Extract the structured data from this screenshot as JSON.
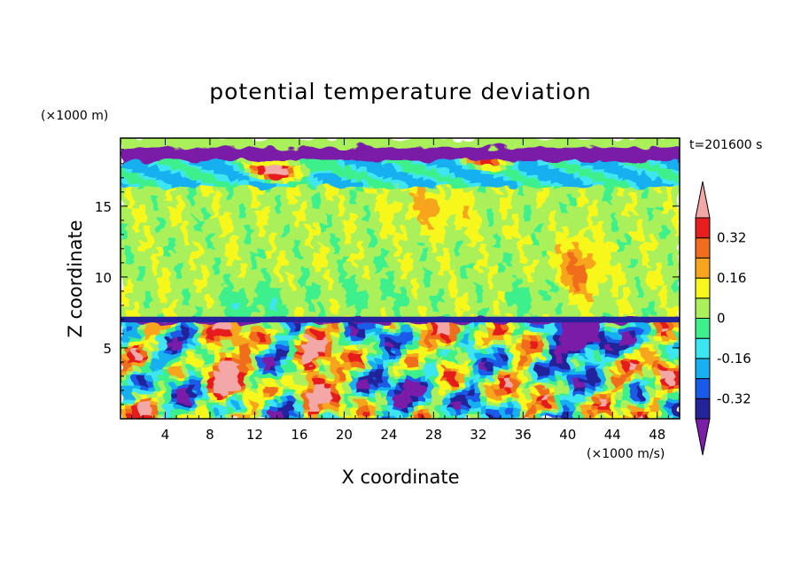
{
  "chart_data": {
    "type": "heatmap",
    "title": "potential temperature deviation",
    "xlabel": "X coordinate",
    "ylabel": "Z coordinate",
    "x_unit": "(×1000 m/s)",
    "y_unit": "(×1000 m)",
    "time_label": "t=201600 s",
    "xlim": [
      0,
      50
    ],
    "ylim": [
      0,
      19.8
    ],
    "x_ticks": [
      4,
      8,
      12,
      16,
      20,
      24,
      28,
      32,
      36,
      40,
      44,
      48
    ],
    "y_ticks": [
      5,
      10,
      15
    ],
    "colorbar": {
      "levels": [
        -0.4,
        -0.32,
        -0.24,
        -0.16,
        -0.08,
        0,
        0.08,
        0.16,
        0.24,
        0.32,
        0.4
      ],
      "tick_labels": [
        "0.32",
        "0.16",
        "0",
        "-0.16",
        "-0.32"
      ],
      "tick_values": [
        0.32,
        0.16,
        0,
        -0.16,
        -0.32
      ],
      "colors": {
        "below": "#7a1fa8",
        "bins": [
          "#23239b",
          "#1a5ae8",
          "#18b0f0",
          "#3ce6f0",
          "#3ef08c",
          "#aaf05a",
          "#f7f71e",
          "#f7a51e",
          "#f06d1e",
          "#e61e1e"
        ],
        "above": "#f4a7a7"
      }
    },
    "regions": {
      "upper_band": {
        "z": [
          7.2,
          16.5
        ],
        "dominant_value": 0.05
      },
      "warm_patch_center": {
        "x": 28,
        "z": 14.8,
        "value": 0.15
      },
      "warm_patch_right": {
        "x": 41,
        "z": 11,
        "value": 0.22
      },
      "tropopause_layer": {
        "z": [
          6.8,
          7.2
        ],
        "value": -0.4
      },
      "cold_layer_top": {
        "z": [
          18.2,
          19.3
        ],
        "value": -0.45
      },
      "lower_layer": {
        "z": [
          0,
          6.8
        ],
        "value_range": [
          -0.45,
          0.45
        ]
      }
    }
  }
}
